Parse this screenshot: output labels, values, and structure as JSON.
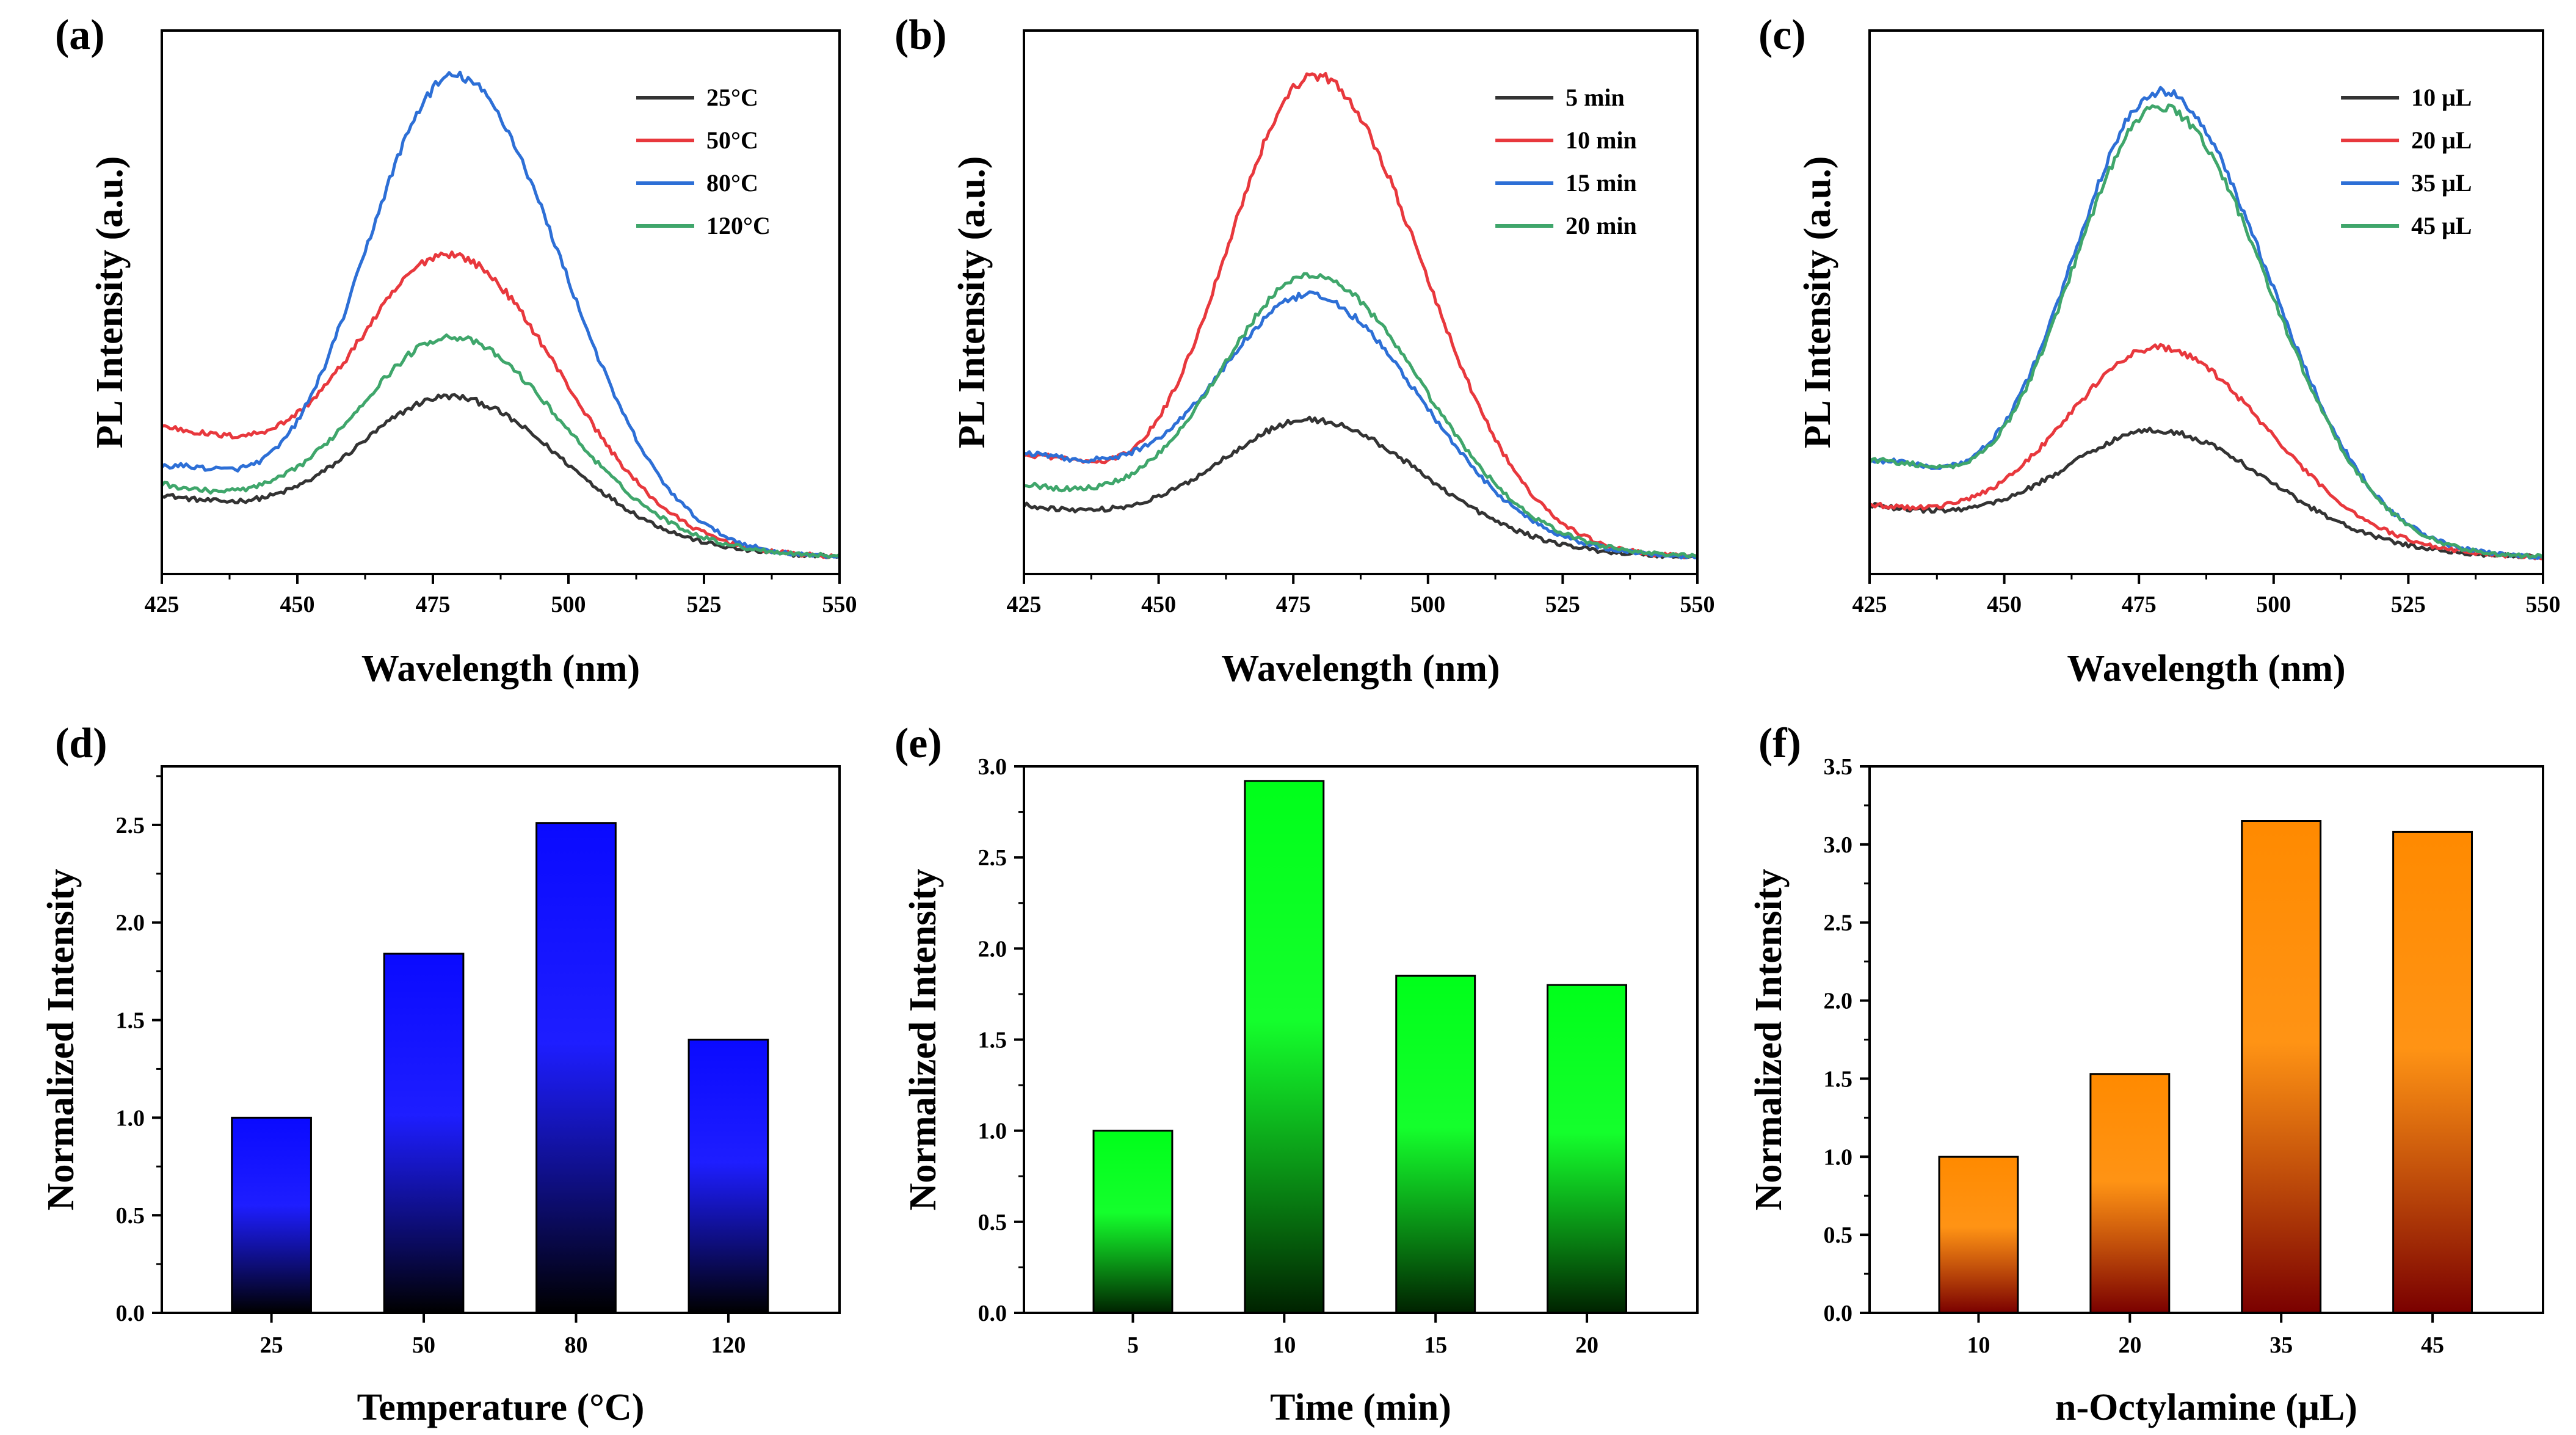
{
  "chart_data": [
    {
      "id": "a",
      "type": "line",
      "panel_label": "(a)",
      "xlabel": "Wavelength (nm)",
      "ylabel": "PL Intensity (a.u.)",
      "xlim": [
        425,
        550
      ],
      "ylim": [
        0,
        1.05
      ],
      "xticks": [
        "425",
        "450",
        "475",
        "500",
        "525",
        "550"
      ],
      "legend_position": "top-right",
      "series": [
        {
          "name": "25°C",
          "color": "#333333",
          "peak": 0.32,
          "base_start": 0.14,
          "bg_width": 70,
          "bg_power": 1
        },
        {
          "name": "50°C",
          "color": "#e8383d",
          "peak": 0.57,
          "base_start": 0.27,
          "bg_width": 70,
          "bg_power": 1.6
        },
        {
          "name": "80°C",
          "color": "#2d6fd6",
          "peak": 0.98,
          "base_start": 0.17,
          "bg_width": 18,
          "bg_power": 1
        },
        {
          "name": "120°C",
          "color": "#3fa66b",
          "peak": 0.43,
          "base_start": 0.16,
          "bg_width": 70,
          "bg_power": 1
        }
      ]
    },
    {
      "id": "b",
      "type": "line",
      "panel_label": "(b)",
      "xlabel": "Wavelength (nm)",
      "ylabel": "PL Intensity (a.u.)",
      "xlim": [
        425,
        550
      ],
      "ylim": [
        0,
        1.05
      ],
      "xticks": [
        "425",
        "450",
        "475",
        "500",
        "525",
        "550"
      ],
      "legend_position": "top-right",
      "series": [
        {
          "name": "5 min",
          "color": "#333333",
          "peak": 0.28,
          "base_start": 0.12,
          "bg_width": 70,
          "bg_power": 1
        },
        {
          "name": "10 min",
          "color": "#e8383d",
          "peak": 0.98,
          "base_start": 0.19,
          "bg_width": 18,
          "bg_power": 1
        },
        {
          "name": "15 min",
          "color": "#2d6fd6",
          "peak": 0.5,
          "base_start": 0.22,
          "bg_width": 70,
          "bg_power": 1.6
        },
        {
          "name": "20 min",
          "color": "#3fa66b",
          "peak": 0.55,
          "base_start": 0.16,
          "bg_width": 70,
          "bg_power": 1
        }
      ]
    },
    {
      "id": "c",
      "type": "line",
      "panel_label": "(c)",
      "xlabel": "Wavelength (nm)",
      "ylabel": "PL Intensity (a.u.)",
      "xlim": [
        425,
        550
      ],
      "ylim": [
        0,
        1.05
      ],
      "xticks": [
        "425",
        "450",
        "475",
        "500",
        "525",
        "550"
      ],
      "legend_position": "top-right",
      "series": [
        {
          "name": "10 μL",
          "color": "#333333",
          "peak": 0.26,
          "base_start": 0.11,
          "bg_width": 70,
          "bg_power": 1
        },
        {
          "name": "20 μL",
          "color": "#e8383d",
          "peak": 0.42,
          "base_start": 0.12,
          "bg_width": 70,
          "bg_power": 1
        },
        {
          "name": "35 μL",
          "color": "#2d6fd6",
          "peak": 0.95,
          "base_start": 0.18,
          "bg_width": 18,
          "bg_power": 1
        },
        {
          "name": "45 μL",
          "color": "#3fa66b",
          "peak": 0.92,
          "base_start": 0.18,
          "bg_width": 18,
          "bg_power": 1
        }
      ]
    },
    {
      "id": "d",
      "type": "bar",
      "panel_label": "(d)",
      "xlabel": "Temperature (°C)",
      "ylabel": "Normalized Intensity",
      "categories": [
        "25",
        "50",
        "80",
        "120"
      ],
      "values": [
        1.0,
        1.84,
        2.51,
        1.4
      ],
      "ylim": [
        0,
        2.8
      ],
      "yticks": [
        "0.0",
        "0.5",
        "1.0",
        "1.5",
        "2.0",
        "2.5"
      ],
      "bar_color_top": "#0a0aff",
      "bar_color_bottom": "#000000"
    },
    {
      "id": "e",
      "type": "bar",
      "panel_label": "(e)",
      "xlabel": "Time (min)",
      "ylabel": "Normalized Intensity",
      "categories": [
        "5",
        "10",
        "15",
        "20"
      ],
      "values": [
        1.0,
        2.92,
        1.85,
        1.8
      ],
      "ylim": [
        0,
        3.0
      ],
      "yticks": [
        "0.0",
        "0.5",
        "1.0",
        "1.5",
        "2.0",
        "2.5",
        "3.0"
      ],
      "bar_color_top": "#00ff1a",
      "bar_color_bottom": "#002200"
    },
    {
      "id": "f",
      "type": "bar",
      "panel_label": "(f)",
      "xlabel": "n-Octylamine (μL)",
      "ylabel": "Normalized Intensity",
      "categories": [
        "10",
        "20",
        "35",
        "45"
      ],
      "values": [
        1.0,
        1.53,
        3.15,
        3.08
      ],
      "ylim": [
        0,
        3.5
      ],
      "yticks": [
        "0.0",
        "0.5",
        "1.0",
        "1.5",
        "2.0",
        "2.5",
        "3.0",
        "3.5"
      ],
      "bar_color_top": "#ff8a00",
      "bar_color_bottom": "#7a0000"
    }
  ]
}
